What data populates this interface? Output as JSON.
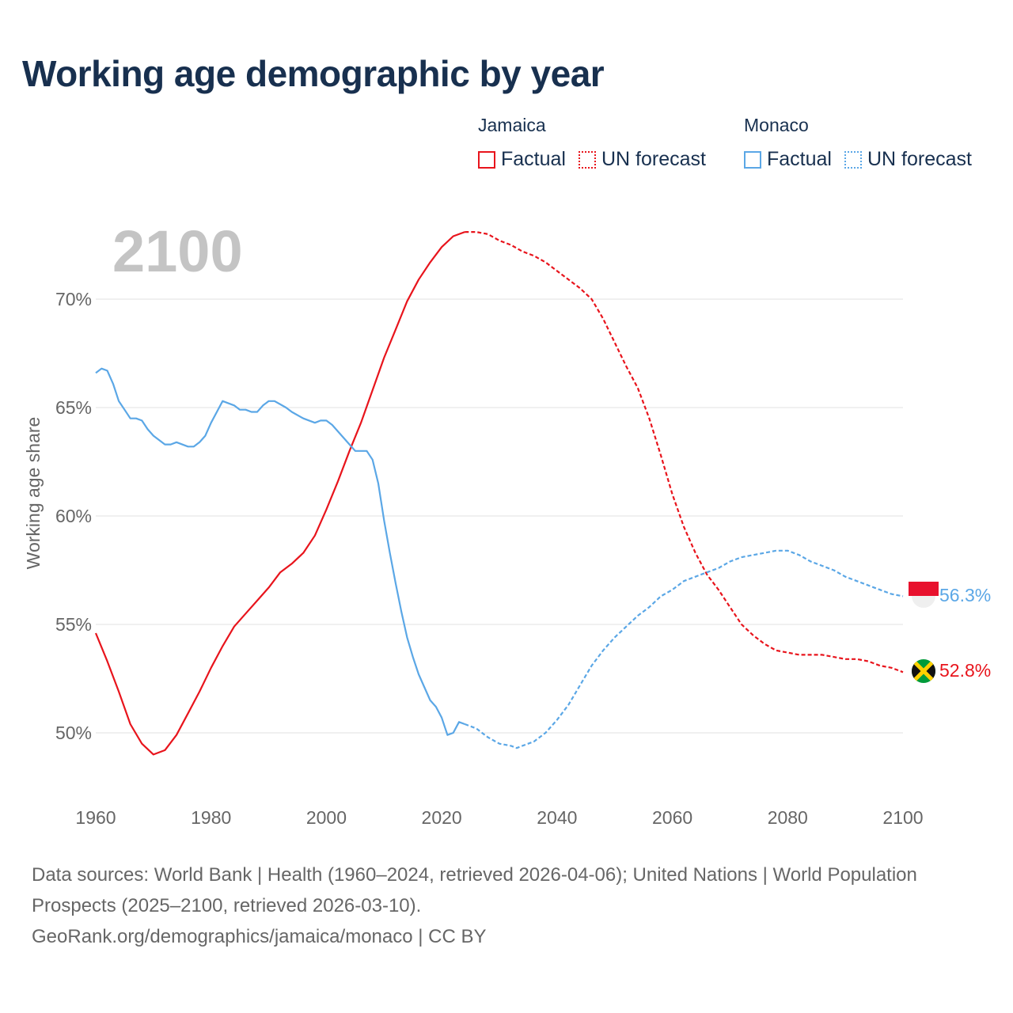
{
  "title": "Working age demographic by year",
  "legend": [
    {
      "group": "Jamaica",
      "items": [
        {
          "label": "Factual",
          "color": "#e8141c",
          "style": "solid"
        },
        {
          "label": "UN forecast",
          "color": "#e8141c",
          "style": "dotted"
        }
      ]
    },
    {
      "group": "Monaco",
      "items": [
        {
          "label": "Factual",
          "color": "#5ba7e6",
          "style": "solid"
        },
        {
          "label": "UN forecast",
          "color": "#5ba7e6",
          "style": "dotted"
        }
      ]
    }
  ],
  "chart_data": {
    "type": "line",
    "year_label": "2100",
    "ylabel": "Working age share",
    "xlim": [
      1960,
      2100
    ],
    "ylim": [
      47,
      73.5
    ],
    "x_ticks": [
      1960,
      1980,
      2000,
      2020,
      2040,
      2060,
      2080,
      2100
    ],
    "y_ticks": [
      50,
      55,
      60,
      65,
      70
    ],
    "y_tick_labels": [
      "50%",
      "55%",
      "60%",
      "65%",
      "70%"
    ],
    "factual_end_year": 2024,
    "series": [
      {
        "name": "Jamaica",
        "color": "#e8141c",
        "end_label": "52.8%",
        "flag": "jamaica",
        "points": [
          [
            1960,
            54.6
          ],
          [
            1962,
            53.3
          ],
          [
            1964,
            51.9
          ],
          [
            1966,
            50.4
          ],
          [
            1968,
            49.5
          ],
          [
            1970,
            49.0
          ],
          [
            1972,
            49.2
          ],
          [
            1974,
            49.9
          ],
          [
            1976,
            50.9
          ],
          [
            1978,
            51.9
          ],
          [
            1980,
            53.0
          ],
          [
            1982,
            54.0
          ],
          [
            1984,
            54.9
          ],
          [
            1986,
            55.5
          ],
          [
            1988,
            56.1
          ],
          [
            1990,
            56.7
          ],
          [
            1992,
            57.4
          ],
          [
            1994,
            57.8
          ],
          [
            1996,
            58.3
          ],
          [
            1998,
            59.1
          ],
          [
            2000,
            60.3
          ],
          [
            2002,
            61.6
          ],
          [
            2004,
            63.0
          ],
          [
            2006,
            64.3
          ],
          [
            2008,
            65.8
          ],
          [
            2010,
            67.3
          ],
          [
            2012,
            68.6
          ],
          [
            2014,
            69.9
          ],
          [
            2016,
            70.9
          ],
          [
            2018,
            71.7
          ],
          [
            2020,
            72.4
          ],
          [
            2022,
            72.9
          ],
          [
            2024,
            73.1
          ],
          [
            2026,
            73.1
          ],
          [
            2028,
            73.0
          ],
          [
            2030,
            72.7
          ],
          [
            2032,
            72.5
          ],
          [
            2034,
            72.2
          ],
          [
            2036,
            72.0
          ],
          [
            2038,
            71.7
          ],
          [
            2040,
            71.3
          ],
          [
            2042,
            70.9
          ],
          [
            2044,
            70.5
          ],
          [
            2046,
            70.0
          ],
          [
            2048,
            69.1
          ],
          [
            2050,
            68.0
          ],
          [
            2052,
            66.9
          ],
          [
            2054,
            65.9
          ],
          [
            2056,
            64.5
          ],
          [
            2058,
            62.8
          ],
          [
            2060,
            61.0
          ],
          [
            2062,
            59.5
          ],
          [
            2064,
            58.3
          ],
          [
            2066,
            57.3
          ],
          [
            2068,
            56.6
          ],
          [
            2070,
            55.8
          ],
          [
            2072,
            55.0
          ],
          [
            2074,
            54.5
          ],
          [
            2076,
            54.1
          ],
          [
            2078,
            53.8
          ],
          [
            2080,
            53.7
          ],
          [
            2082,
            53.6
          ],
          [
            2084,
            53.6
          ],
          [
            2086,
            53.6
          ],
          [
            2088,
            53.5
          ],
          [
            2090,
            53.4
          ],
          [
            2092,
            53.4
          ],
          [
            2094,
            53.3
          ],
          [
            2096,
            53.1
          ],
          [
            2098,
            53.0
          ],
          [
            2100,
            52.8
          ]
        ]
      },
      {
        "name": "Monaco",
        "color": "#5ba7e6",
        "end_label": "56.3%",
        "flag": "monaco",
        "points": [
          [
            1960,
            66.6
          ],
          [
            1961,
            66.8
          ],
          [
            1962,
            66.7
          ],
          [
            1963,
            66.1
          ],
          [
            1964,
            65.3
          ],
          [
            1965,
            64.9
          ],
          [
            1966,
            64.5
          ],
          [
            1967,
            64.5
          ],
          [
            1968,
            64.4
          ],
          [
            1969,
            64.0
          ],
          [
            1970,
            63.7
          ],
          [
            1972,
            63.3
          ],
          [
            1973,
            63.3
          ],
          [
            1974,
            63.4
          ],
          [
            1976,
            63.2
          ],
          [
            1977,
            63.2
          ],
          [
            1978,
            63.4
          ],
          [
            1979,
            63.7
          ],
          [
            1980,
            64.3
          ],
          [
            1981,
            64.8
          ],
          [
            1982,
            65.3
          ],
          [
            1984,
            65.1
          ],
          [
            1985,
            64.9
          ],
          [
            1986,
            64.9
          ],
          [
            1987,
            64.8
          ],
          [
            1988,
            64.8
          ],
          [
            1989,
            65.1
          ],
          [
            1990,
            65.3
          ],
          [
            1991,
            65.3
          ],
          [
            1993,
            65.0
          ],
          [
            1994,
            64.8
          ],
          [
            1996,
            64.5
          ],
          [
            1998,
            64.3
          ],
          [
            1999,
            64.4
          ],
          [
            2000,
            64.4
          ],
          [
            2001,
            64.2
          ],
          [
            2002,
            63.9
          ],
          [
            2003,
            63.6
          ],
          [
            2004,
            63.3
          ],
          [
            2005,
            63.0
          ],
          [
            2006,
            63.0
          ],
          [
            2007,
            63.0
          ],
          [
            2008,
            62.6
          ],
          [
            2009,
            61.5
          ],
          [
            2010,
            59.8
          ],
          [
            2011,
            58.3
          ],
          [
            2012,
            56.9
          ],
          [
            2013,
            55.6
          ],
          [
            2014,
            54.4
          ],
          [
            2015,
            53.5
          ],
          [
            2016,
            52.7
          ],
          [
            2017,
            52.1
          ],
          [
            2018,
            51.5
          ],
          [
            2019,
            51.2
          ],
          [
            2020,
            50.7
          ],
          [
            2021,
            49.9
          ],
          [
            2022,
            50.0
          ],
          [
            2023,
            50.5
          ],
          [
            2024,
            50.4
          ],
          [
            2026,
            50.2
          ],
          [
            2028,
            49.8
          ],
          [
            2030,
            49.5
          ],
          [
            2032,
            49.4
          ],
          [
            2033,
            49.3
          ],
          [
            2034,
            49.4
          ],
          [
            2036,
            49.6
          ],
          [
            2038,
            50.0
          ],
          [
            2040,
            50.6
          ],
          [
            2042,
            51.3
          ],
          [
            2044,
            52.2
          ],
          [
            2046,
            53.1
          ],
          [
            2048,
            53.8
          ],
          [
            2050,
            54.4
          ],
          [
            2052,
            54.9
          ],
          [
            2054,
            55.4
          ],
          [
            2056,
            55.8
          ],
          [
            2058,
            56.3
          ],
          [
            2060,
            56.6
          ],
          [
            2062,
            57.0
          ],
          [
            2064,
            57.2
          ],
          [
            2066,
            57.4
          ],
          [
            2068,
            57.6
          ],
          [
            2070,
            57.9
          ],
          [
            2072,
            58.1
          ],
          [
            2074,
            58.2
          ],
          [
            2076,
            58.3
          ],
          [
            2078,
            58.4
          ],
          [
            2080,
            58.4
          ],
          [
            2082,
            58.2
          ],
          [
            2084,
            57.9
          ],
          [
            2086,
            57.7
          ],
          [
            2088,
            57.5
          ],
          [
            2090,
            57.2
          ],
          [
            2092,
            57.0
          ],
          [
            2094,
            56.8
          ],
          [
            2096,
            56.6
          ],
          [
            2098,
            56.4
          ],
          [
            2100,
            56.3
          ]
        ]
      }
    ]
  },
  "footer": {
    "line1": "Data sources: World Bank | Health (1960–2024, retrieved 2026-04-06); United Nations | World Population Prospects (2025–2100, retrieved 2026-03-10).",
    "line2": "GeoRank.org/demographics/jamaica/monaco | CC BY"
  }
}
